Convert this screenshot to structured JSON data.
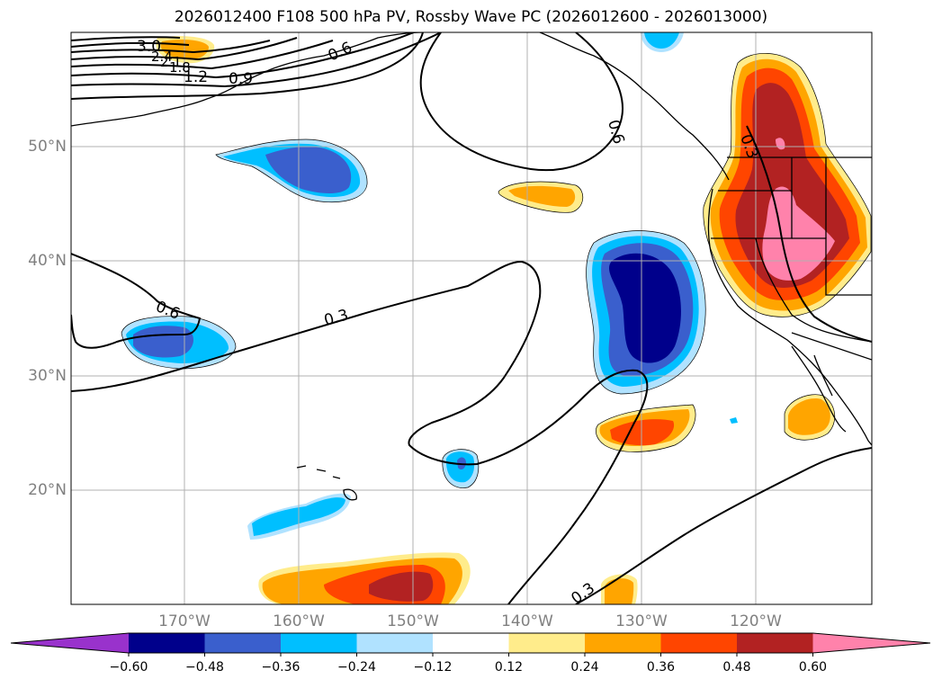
{
  "title": "2026012400 F108 500 hPa PV, Rossby Wave PC (2026012600 - 2026013000)",
  "lat_labels": [
    "50°N",
    "40°N",
    "30°N",
    "20°N"
  ],
  "lon_labels": [
    "170°W",
    "160°W",
    "150°W",
    "140°W",
    "130°W",
    "120°W"
  ],
  "contour_labels": [
    "3.0",
    "2.4",
    "2.1",
    "1.8",
    "1.2",
    "0.9",
    "0.6",
    "0.6",
    "0.6",
    "0.3",
    "0.3",
    "0.3"
  ],
  "colorbar": {
    "ticks": [
      "−0.60",
      "−0.48",
      "−0.36",
      "−0.24",
      "−0.12",
      "0.12",
      "0.24",
      "0.36",
      "0.48",
      "0.60"
    ],
    "colors": [
      "#9932cc",
      "#00008b",
      "#3a5fcd",
      "#00bfff",
      "#b0e2ff",
      "#ffffff",
      "#ffec8b",
      "#ffa500",
      "#ff4500",
      "#b22222",
      "#ff82ab"
    ]
  },
  "shading_palette": {
    "neg_lightblue": "#b0e2ff",
    "neg_deepskyblue": "#00bfff",
    "neg_royalblue": "#3a5fcd",
    "neg_navy": "#00008b",
    "pos_lightyellow": "#ffec8b",
    "pos_orange": "#ffa500",
    "pos_orangered": "#ff4500",
    "pos_firebrick": "#b22222",
    "pos_pink": "#ff82ab"
  }
}
